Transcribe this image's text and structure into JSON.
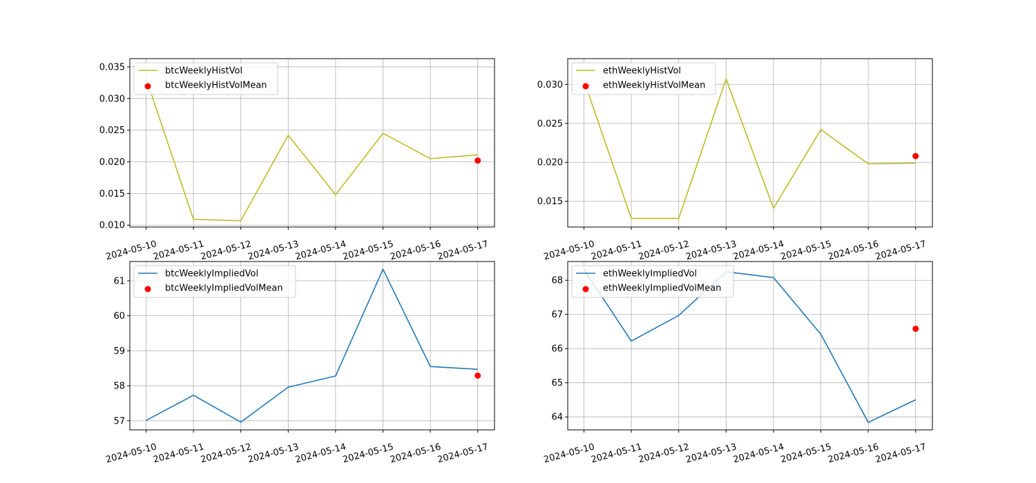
{
  "chart_data": [
    {
      "type": "line",
      "x": [
        "2024-05-10",
        "2024-05-11",
        "2024-05-12",
        "2024-05-13",
        "2024-05-14",
        "2024-05-15",
        "2024-05-16",
        "2024-05-17"
      ],
      "series": [
        {
          "name": "btcWeeklyHistVol",
          "kind": "line",
          "color": "#bcbd22",
          "values": [
            0.0332,
            0.0109,
            0.0107,
            0.0242,
            0.0148,
            0.0245,
            0.0205,
            0.0211
          ]
        },
        {
          "name": "btcWeeklyHistVolMean",
          "kind": "scatter",
          "color": "#ff0000",
          "points": [
            {
              "x": "2024-05-17",
              "y": 0.0202
            }
          ]
        }
      ],
      "ylim": [
        0.0097,
        0.0363
      ],
      "yticks": [
        0.01,
        0.015,
        0.02,
        0.025,
        0.03,
        0.035
      ],
      "ytick_labels": [
        "0.010",
        "0.015",
        "0.020",
        "0.025",
        "0.030",
        "0.035"
      ],
      "grid": true,
      "legend": "upper left"
    },
    {
      "type": "line",
      "x": [
        "2024-05-10",
        "2024-05-11",
        "2024-05-12",
        "2024-05-13",
        "2024-05-14",
        "2024-05-15",
        "2024-05-16",
        "2024-05-17"
      ],
      "series": [
        {
          "name": "ethWeeklyHistVol",
          "kind": "line",
          "color": "#bcbd22",
          "values": [
            0.0305,
            0.0128,
            0.0128,
            0.0307,
            0.0141,
            0.0242,
            0.0198,
            0.0199
          ]
        },
        {
          "name": "ethWeeklyHistVolMean",
          "kind": "scatter",
          "color": "#ff0000",
          "points": [
            {
              "x": "2024-05-17",
              "y": 0.0208
            }
          ]
        }
      ],
      "ylim": [
        0.0117,
        0.0333
      ],
      "yticks": [
        0.015,
        0.02,
        0.025,
        0.03
      ],
      "ytick_labels": [
        "0.015",
        "0.020",
        "0.025",
        "0.030"
      ],
      "grid": true,
      "legend": "upper left"
    },
    {
      "type": "line",
      "x": [
        "2024-05-10",
        "2024-05-11",
        "2024-05-12",
        "2024-05-13",
        "2024-05-14",
        "2024-05-15",
        "2024-05-16",
        "2024-05-17"
      ],
      "series": [
        {
          "name": "btcWeeklyImpliedVol",
          "kind": "line",
          "color": "#1f77b4",
          "values": [
            57.01,
            57.73,
            56.96,
            57.96,
            58.28,
            61.33,
            58.55,
            58.47
          ]
        },
        {
          "name": "btcWeeklyImpliedVolMean",
          "kind": "scatter",
          "color": "#ff0000",
          "points": [
            {
              "x": "2024-05-17",
              "y": 58.29
            }
          ]
        }
      ],
      "ylim": [
        56.74,
        61.55
      ],
      "yticks": [
        57,
        58,
        59,
        60,
        61
      ],
      "ytick_labels": [
        "57",
        "58",
        "59",
        "60",
        "61"
      ],
      "grid": true,
      "legend": "upper left"
    },
    {
      "type": "line",
      "x": [
        "2024-05-10",
        "2024-05-11",
        "2024-05-12",
        "2024-05-13",
        "2024-05-14",
        "2024-05-15",
        "2024-05-16",
        "2024-05-17"
      ],
      "series": [
        {
          "name": "ethWeeklyImpliedVol",
          "kind": "line",
          "color": "#1f77b4",
          "values": [
            68.32,
            66.22,
            66.97,
            68.25,
            68.08,
            66.42,
            63.84,
            64.5
          ]
        },
        {
          "name": "ethWeeklyImpliedVolMean",
          "kind": "scatter",
          "color": "#ff0000",
          "points": [
            {
              "x": "2024-05-17",
              "y": 66.58
            }
          ]
        }
      ],
      "ylim": [
        63.62,
        68.55
      ],
      "yticks": [
        64,
        65,
        66,
        67,
        68
      ],
      "ytick_labels": [
        "64",
        "65",
        "66",
        "67",
        "68"
      ],
      "grid": true,
      "legend": "upper left"
    }
  ]
}
